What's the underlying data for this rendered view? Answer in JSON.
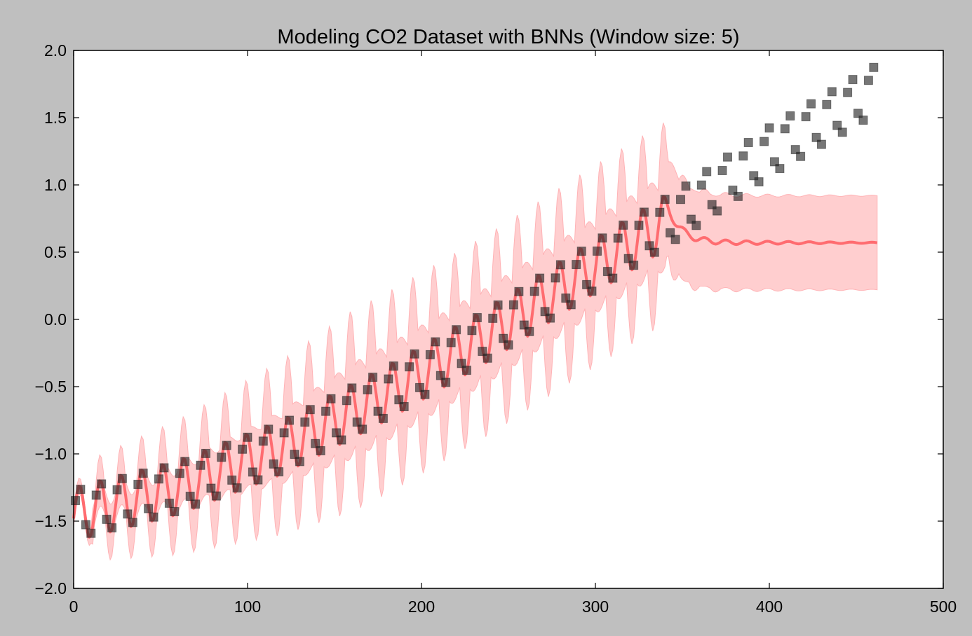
{
  "chart_data": {
    "type": "line",
    "title": "Modeling CO2 Dataset with BNNs (Window size: 5)",
    "xlabel": "",
    "ylabel": "",
    "xlim": [
      0,
      500
    ],
    "ylim": [
      -2.0,
      2.0
    ],
    "x_ticks": [
      0,
      100,
      200,
      300,
      400,
      500
    ],
    "x_tick_labels": [
      "0",
      "100",
      "200",
      "300",
      "400",
      "500"
    ],
    "y_ticks": [
      -2.0,
      -1.5,
      -1.0,
      -0.5,
      0.0,
      0.5,
      1.0,
      1.5,
      2.0
    ],
    "y_tick_labels": [
      "−2.0",
      "−1.5",
      "−1.0",
      "−0.5",
      "0.0",
      "0.5",
      "1.0",
      "1.5",
      "2.0"
    ],
    "grid": false,
    "legend": "none",
    "colors": {
      "figure_background": "#bfbfbf",
      "plot_background": "#ffffff",
      "observed_marker": "#222222",
      "prediction_line": "#ff5a5f",
      "uncertainty_band": "#ffb3b6"
    },
    "series": [
      {
        "kind": "scatter",
        "marker": "square",
        "trend": {
          "x": [
            0,
            60,
            120,
            180,
            240,
            300,
            350,
            400,
            460
          ],
          "y": [
            -1.45,
            -1.25,
            -0.95,
            -0.55,
            -0.1,
            0.4,
            0.8,
            1.25,
            1.7
          ]
        },
        "seasonal_amplitude": 0.2,
        "period": 12,
        "x_start": 1,
        "x_end": 461,
        "step": 3
      },
      {
        "kind": "line",
        "x_start": 0,
        "x_end": 462,
        "training_end": 340,
        "forecast_level": 0.57,
        "band_halfwidth_forecast": 0.35
      }
    ]
  }
}
